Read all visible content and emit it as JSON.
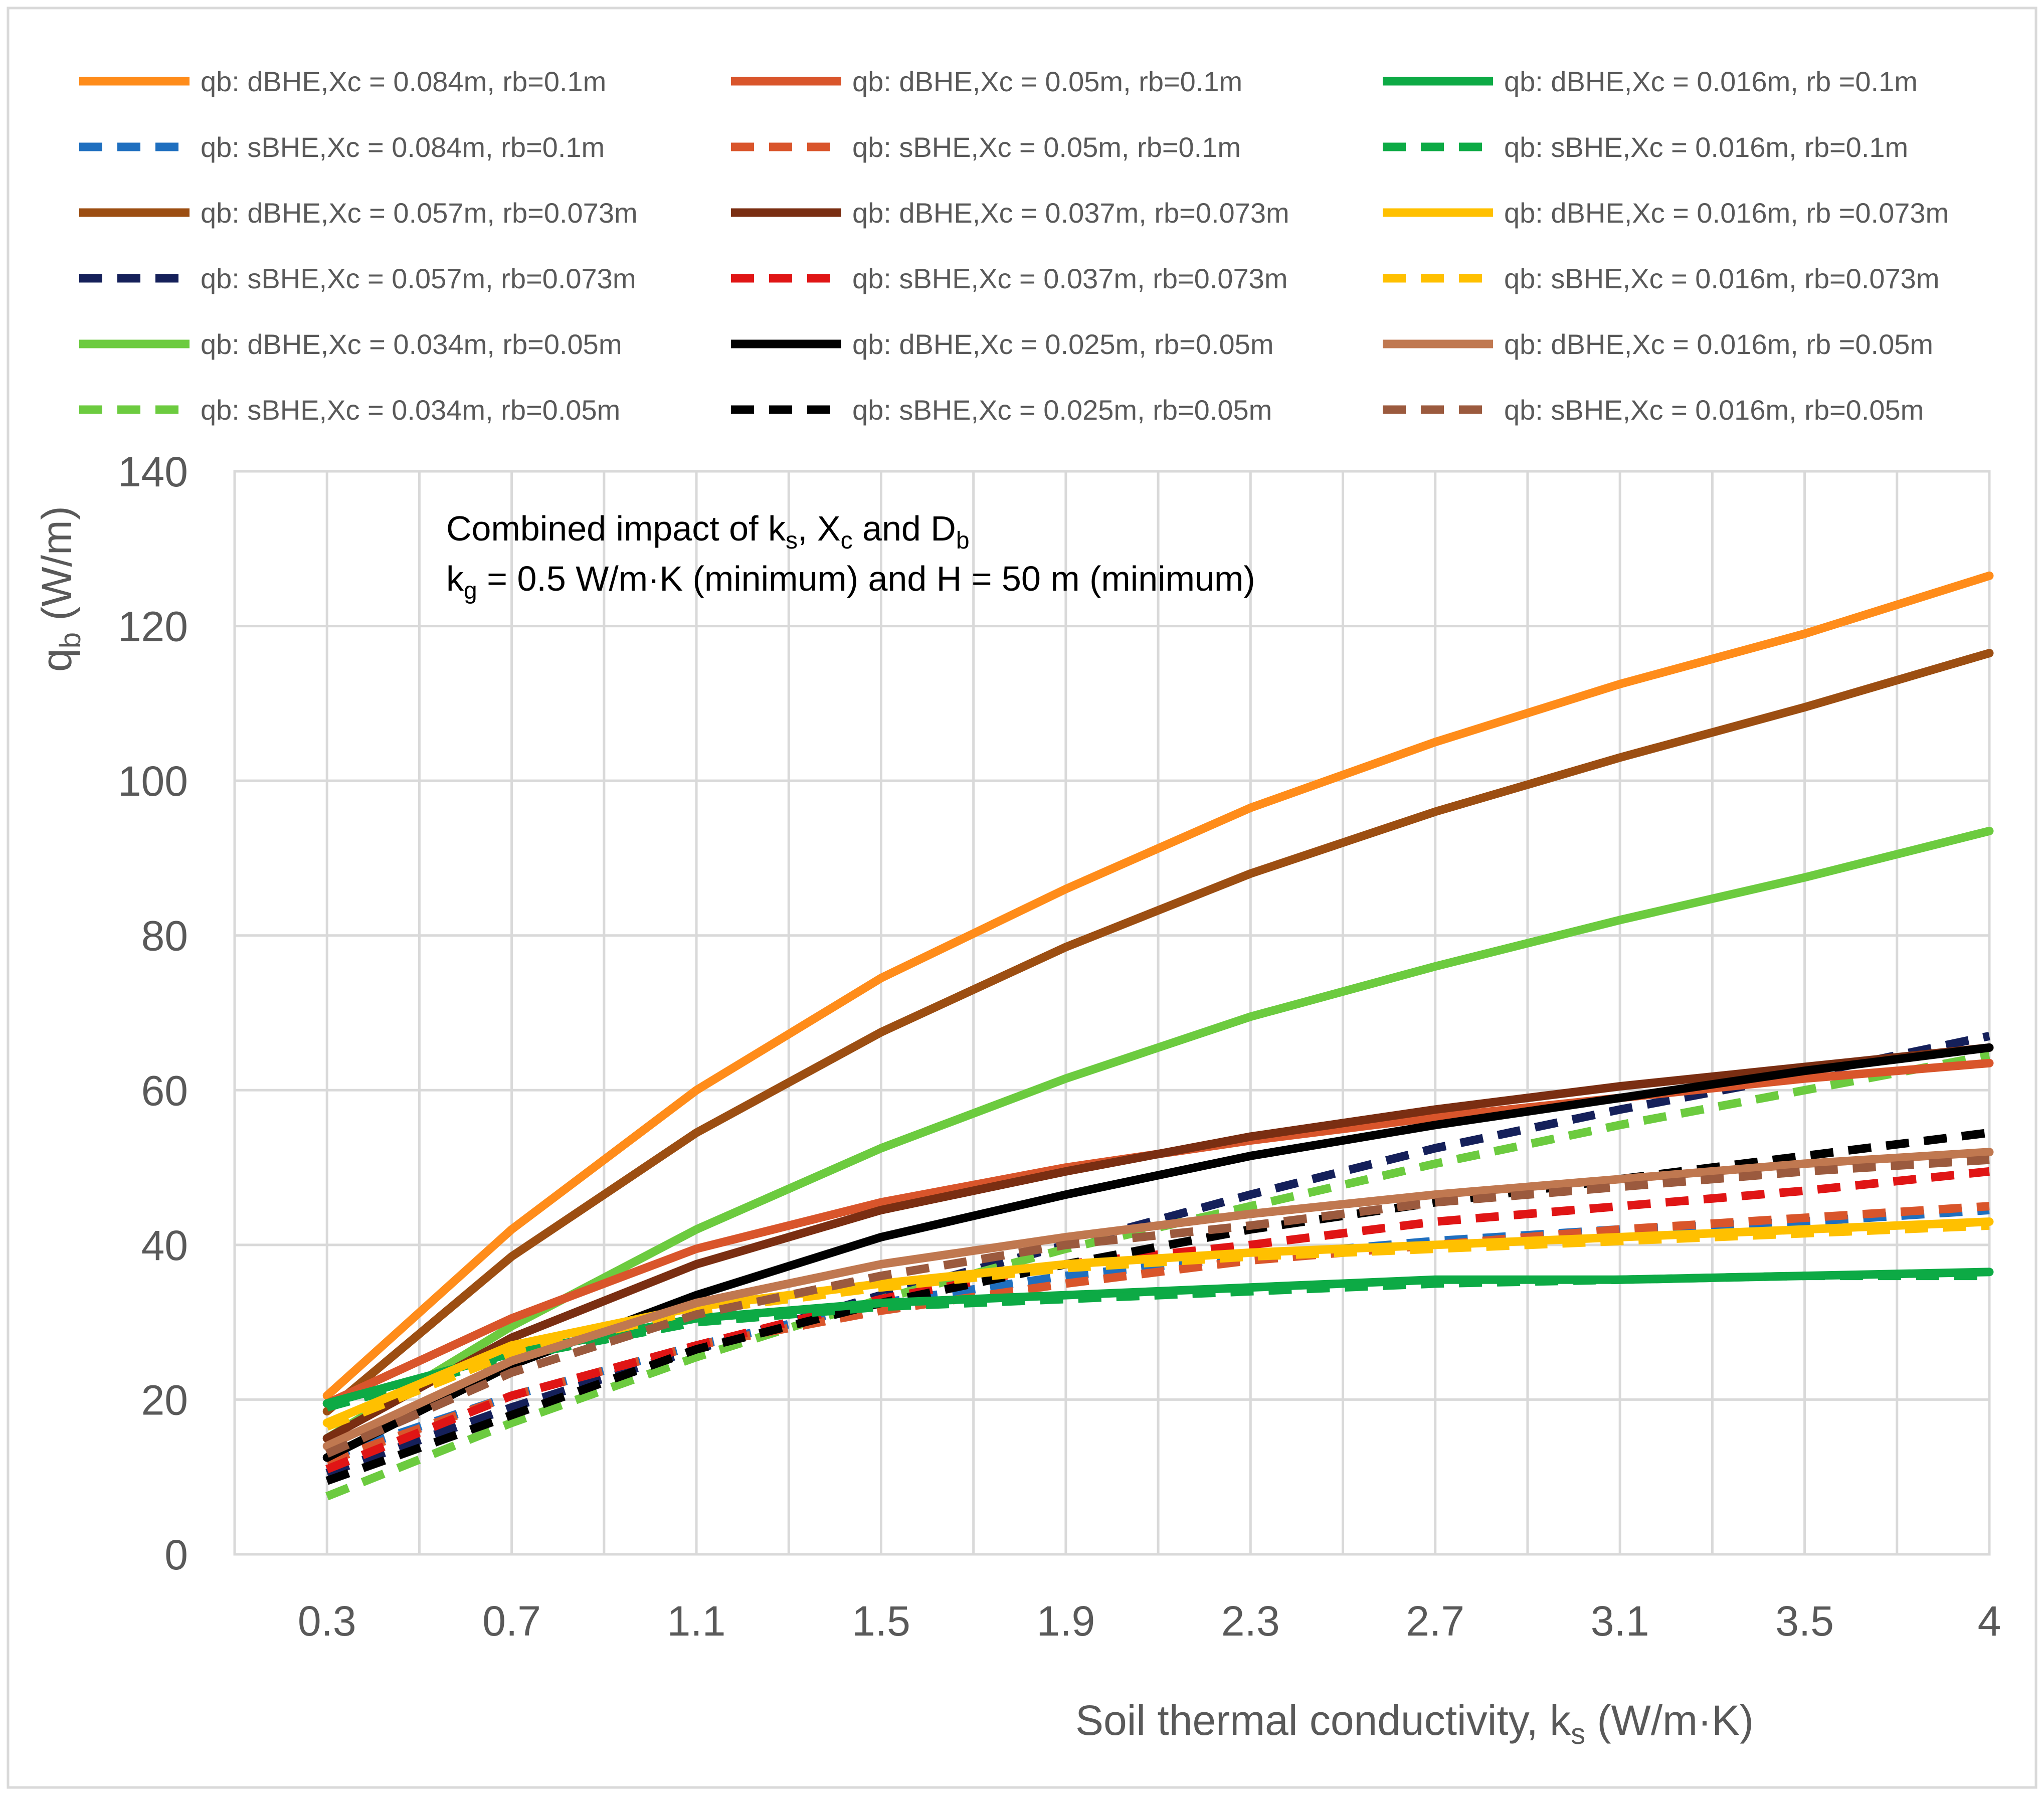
{
  "chart_data": {
    "type": "line",
    "title": "",
    "annotation": {
      "line1": {
        "pre": "Combined impact of k",
        "sub1": "s",
        "mid1": ", X",
        "sub2": "c",
        "mid2": " and D",
        "sub3": "b"
      },
      "line2": {
        "pre": "k",
        "sub1": "g",
        "post": " = 0.5 W/m·K (minimum) and H = 50 m (minimum)"
      }
    },
    "xlabel": {
      "pre": "Soil thermal conductivity, k",
      "sub": "s",
      "post": " (W/m·K)"
    },
    "ylabel": {
      "pre": "q",
      "sub": "b",
      "post": " (W/m)"
    },
    "x": [
      0.3,
      0.7,
      1.1,
      1.5,
      1.9,
      2.3,
      2.7,
      3.1,
      3.5,
      4
    ],
    "x_tick_labels": [
      "0.3",
      "0.7",
      "1.1",
      "1.5",
      "1.9",
      "2.3",
      "2.7",
      "3.1",
      "3.5",
      "4"
    ],
    "y_ticks": [
      0,
      20,
      40,
      60,
      80,
      100,
      120,
      140
    ],
    "y_tick_labels": [
      "0",
      "20",
      "40",
      "60",
      "80",
      "100",
      "120",
      "140"
    ],
    "ylim": [
      0,
      140
    ],
    "grid": true,
    "legend_position": "top",
    "series": [
      {
        "name": "qb: dBHE,Xc = 0.084m, rb=0.1m",
        "color": "#FF8C1A",
        "dash": false,
        "values": [
          20.5,
          42,
          60,
          74.5,
          86,
          96.5,
          105,
          112.5,
          119,
          126.5
        ]
      },
      {
        "name": "qb: sBHE,Xc = 0.084m, rb=0.1m",
        "color": "#1F6FBF",
        "dash": true,
        "values": [
          12.5,
          20.5,
          27,
          32.5,
          36,
          38.5,
          40.5,
          42,
          43,
          44.5
        ]
      },
      {
        "name": "qb: dBHE,Xc = 0.057m, rb=0.073m",
        "color": "#9C4E12",
        "dash": false,
        "values": [
          18.5,
          38.5,
          54.5,
          67.5,
          78.5,
          88,
          96,
          103,
          109.5,
          116.5
        ]
      },
      {
        "name": "qb: sBHE,Xc = 0.057m, rb=0.073m",
        "color": "#15205A",
        "dash": true,
        "values": [
          10.5,
          19,
          26.5,
          33.5,
          40,
          46.5,
          52.5,
          57.5,
          62,
          67
        ]
      },
      {
        "name": "qb: dBHE,Xc = 0.034m, rb=0.05m",
        "color": "#6CCB3F",
        "dash": false,
        "values": [
          15,
          29.5,
          42,
          52.5,
          61.5,
          69.5,
          76,
          82,
          87.5,
          93.5
        ]
      },
      {
        "name": "qb: sBHE,Xc = 0.034m, rb=0.05m",
        "color": "#6CCB3F",
        "dash": true,
        "values": [
          7.5,
          17,
          25.5,
          33,
          39.5,
          45,
          50.5,
          55.5,
          60,
          64.5
        ]
      },
      {
        "name": "qb: dBHE,Xc = 0.05m, rb=0.1m",
        "color": "#D9552B",
        "dash": false,
        "values": [
          19.5,
          30.5,
          39.5,
          45.5,
          50,
          53.5,
          56.5,
          59,
          61.5,
          63.5
        ]
      },
      {
        "name": "qb: sBHE,Xc = 0.05m, rb=0.1m",
        "color": "#D9552B",
        "dash": true,
        "values": [
          12,
          20.5,
          27,
          31.5,
          35,
          38,
          40,
          42,
          43.5,
          45
        ]
      },
      {
        "name": "qb: dBHE,Xc = 0.037m, rb=0.073m",
        "color": "#7A2E12",
        "dash": false,
        "values": [
          15,
          28,
          37.5,
          44.5,
          49.5,
          54,
          57.5,
          60.5,
          63,
          65.5
        ]
      },
      {
        "name": "qb: sBHE,Xc = 0.037m, rb=0.073m",
        "color": "#E01515",
        "dash": true,
        "values": [
          11,
          20.5,
          27,
          33,
          37.5,
          40,
          43,
          45,
          47,
          49.5
        ]
      },
      {
        "name": "qb: dBHE,Xc = 0.025m, rb=0.05m",
        "color": "#000000",
        "dash": false,
        "values": [
          12.5,
          24.5,
          33.5,
          41,
          46.5,
          51.5,
          55.5,
          59,
          62.5,
          65.5
        ]
      },
      {
        "name": "qb: sBHE,Xc = 0.025m, rb=0.05m",
        "color": "#000000",
        "dash": true,
        "values": [
          9.5,
          18,
          26.5,
          32.5,
          37.5,
          42,
          45.5,
          48.5,
          51.5,
          54.5
        ]
      },
      {
        "name": "qb: dBHE,Xc = 0.016m, rb =0.1m",
        "color": "#0DAA45",
        "dash": false,
        "values": [
          19.5,
          26,
          30.5,
          32.5,
          33.5,
          34.5,
          35.5,
          35.5,
          36,
          36.5
        ]
      },
      {
        "name": "qb: sBHE,Xc = 0.016m, rb=0.1m",
        "color": "#0DAA45",
        "dash": true,
        "values": [
          19,
          25.5,
          30,
          32,
          33,
          34,
          35,
          35.5,
          36,
          36
        ]
      },
      {
        "name": "qb: dBHE,Xc = 0.016m, rb =0.073m",
        "color": "#FFC000",
        "dash": false,
        "values": [
          17,
          27,
          32,
          35,
          37.5,
          39,
          40,
          41,
          42,
          43
        ]
      },
      {
        "name": "qb: sBHE,Xc = 0.016m, rb=0.073m",
        "color": "#FFC000",
        "dash": true,
        "values": [
          16.5,
          26,
          31.5,
          34.5,
          37,
          38.5,
          39.5,
          40.5,
          41.5,
          42.5
        ]
      },
      {
        "name": "qb: dBHE,Xc = 0.016m, rb =0.05m",
        "color": "#C07850",
        "dash": false,
        "values": [
          14,
          25,
          32.5,
          37.5,
          41,
          44,
          46.5,
          48.5,
          50.5,
          52
        ]
      },
      {
        "name": "qb: sBHE,Xc = 0.016m, rb=0.05m",
        "color": "#9B5A3E",
        "dash": true,
        "values": [
          13,
          23.5,
          31,
          36,
          40,
          42.5,
          45.5,
          47.5,
          49.5,
          51
        ]
      }
    ],
    "legend_order": [
      "qb: dBHE,Xc = 0.084m, rb=0.1m",
      "qb: dBHE,Xc = 0.05m, rb=0.1m",
      "qb: dBHE,Xc = 0.016m, rb =0.1m",
      "qb: sBHE,Xc = 0.084m, rb=0.1m",
      "qb: sBHE,Xc = 0.05m, rb=0.1m",
      "qb: sBHE,Xc = 0.016m, rb=0.1m",
      "qb: dBHE,Xc = 0.057m, rb=0.073m",
      "qb: dBHE,Xc = 0.037m, rb=0.073m",
      "qb: dBHE,Xc = 0.016m, rb =0.073m",
      "qb: sBHE,Xc = 0.057m, rb=0.073m",
      "qb: sBHE,Xc = 0.037m, rb=0.073m",
      "qb: sBHE,Xc = 0.016m, rb=0.073m",
      "qb: dBHE,Xc = 0.034m, rb=0.05m",
      "qb: dBHE,Xc = 0.025m, rb=0.05m",
      "qb: dBHE,Xc = 0.016m, rb =0.05m",
      "qb: sBHE,Xc = 0.034m, rb=0.05m",
      "qb: sBHE,Xc = 0.025m, rb=0.05m",
      "qb: sBHE,Xc = 0.016m, rb=0.05m"
    ]
  }
}
